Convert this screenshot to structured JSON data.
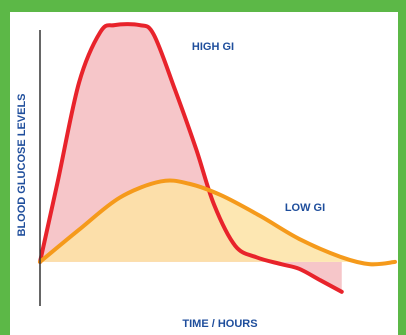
{
  "chart_data": {
    "type": "line",
    "series": [
      {
        "name": "HIGH GI",
        "color": "#e8232b",
        "fill": "#f5bcc0",
        "x": [
          0,
          0.5,
          1.1,
          1.7,
          2.1,
          2.8,
          3.2,
          3.8,
          4.4,
          4.9,
          5.5,
          6.1,
          6.8,
          7.3,
          7.9,
          8.5
        ],
        "values": [
          0,
          35,
          78,
          100,
          103,
          103,
          99,
          75,
          49,
          25,
          7,
          2,
          -1,
          -3,
          -8,
          -13
        ]
      },
      {
        "name": "LOW GI",
        "color": "#f59a1b",
        "fill": "#fde3a4",
        "x": [
          0,
          1.1,
          2.25,
          3.4,
          4.2,
          5.1,
          6.2,
          7.3,
          8.5,
          9.3,
          10
        ],
        "values": [
          0,
          14,
          28,
          35,
          34,
          29,
          20,
          10,
          2,
          -1,
          0
        ]
      }
    ],
    "x_label": "TIME / HOURS",
    "y_label": "BLOOD GLUCOSE LEVELS",
    "xlim": [
      0,
      10
    ],
    "ylim": [
      -17,
      105
    ]
  }
}
